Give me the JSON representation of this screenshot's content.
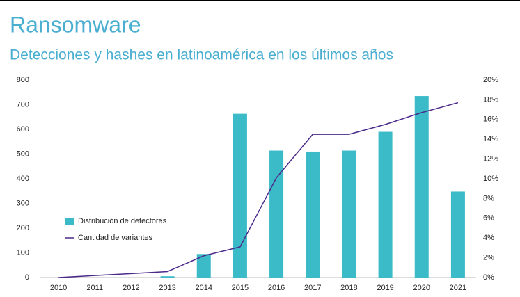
{
  "chart_data": {
    "type": "bar_line",
    "title": "Ransomware",
    "subtitle": "Detecciones y hashes en latinoamérica en los últimos años",
    "categories": [
      "2010",
      "2011",
      "2012",
      "2013",
      "2014",
      "2015",
      "2016",
      "2017",
      "2018",
      "2019",
      "2020",
      "2021"
    ],
    "series": [
      {
        "name": "Distribución de detectores",
        "type": "bar",
        "color": "#3bbac8",
        "values": [
          0,
          0,
          0,
          5,
          95,
          663,
          514,
          510,
          514,
          590,
          735,
          348
        ]
      },
      {
        "name": "Cantidad de variantes",
        "type": "line",
        "axis": "y2",
        "color": "#4b2a8a",
        "values": [
          0,
          0.2,
          0.4,
          0.6,
          2.2,
          3.1,
          10.1,
          14.5,
          14.5,
          15.5,
          16.7,
          17.7
        ]
      }
    ],
    "ylim": [
      0,
      800
    ],
    "yticks": [
      0,
      100,
      200,
      300,
      400,
      500,
      600,
      700,
      800
    ],
    "y2lim": [
      0,
      20
    ],
    "y2ticks": [
      {
        "value": 0,
        "label": "0%"
      },
      {
        "value": 2,
        "label": "2%"
      },
      {
        "value": 4,
        "label": "4%"
      },
      {
        "value": 6,
        "label": "6%"
      },
      {
        "value": 8,
        "label": "8%"
      },
      {
        "value": 10,
        "label": "10%"
      },
      {
        "value": 12,
        "label": "12%"
      },
      {
        "value": 14,
        "label": "14%"
      },
      {
        "value": 16,
        "label": "16%"
      },
      {
        "value": 18,
        "label": "18%"
      },
      {
        "value": 20,
        "label": "20%"
      }
    ],
    "legend": "left"
  }
}
